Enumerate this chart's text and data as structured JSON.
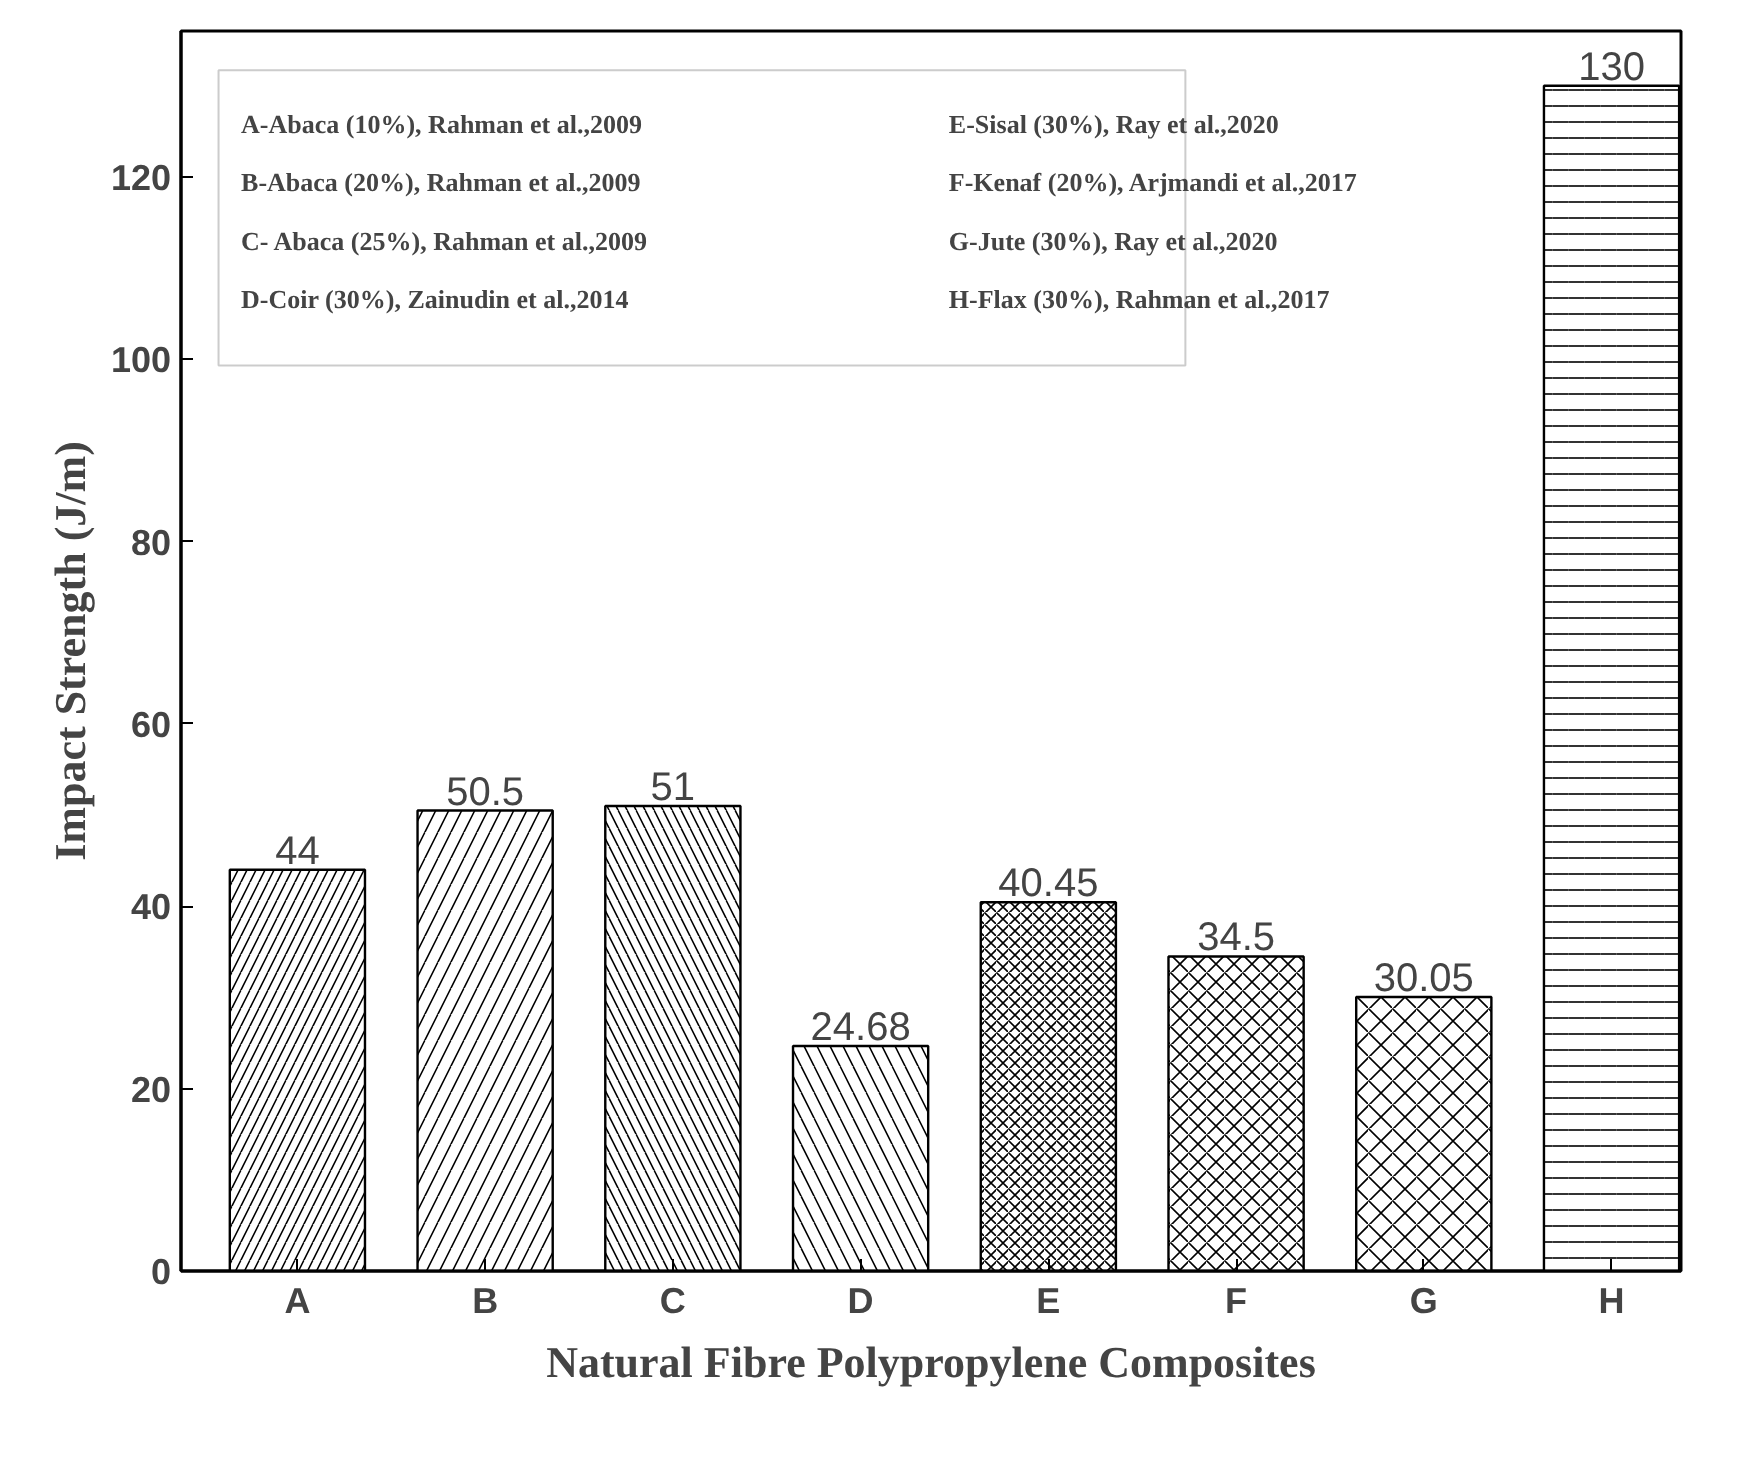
{
  "chart_data": {
    "type": "bar",
    "xlabel": "Natural Fibre Polypropylene Composites",
    "ylabel": "Impact Strength (J/m)",
    "categories": [
      "A",
      "B",
      "C",
      "D",
      "E",
      "F",
      "G",
      "H"
    ],
    "values": [
      44,
      50.5,
      51,
      24.68,
      40.45,
      34.5,
      30.05,
      130
    ],
    "color": "#000000",
    "ylim": [
      0,
      136
    ],
    "yticks": [
      0,
      20,
      40,
      60,
      80,
      100,
      120
    ],
    "data_labels": true,
    "grid": false,
    "annotations": [
      "A-Abaca (10%), Rahman et al.,2009",
      "B-Abaca (20%), Rahman et al.,2009",
      "C- Abaca (25%), Rahman et al.,2009",
      "D-Coir (30%), Zainudin et al.,2014",
      "E-Sisal (30%), Ray et al.,2020",
      "F-Kenaf (20%), Arjmandi et al.,2017",
      "G-Jute (30%), Ray et al.,2020",
      "H-Flax (30%), Rahman et al.,2017"
    ]
  }
}
